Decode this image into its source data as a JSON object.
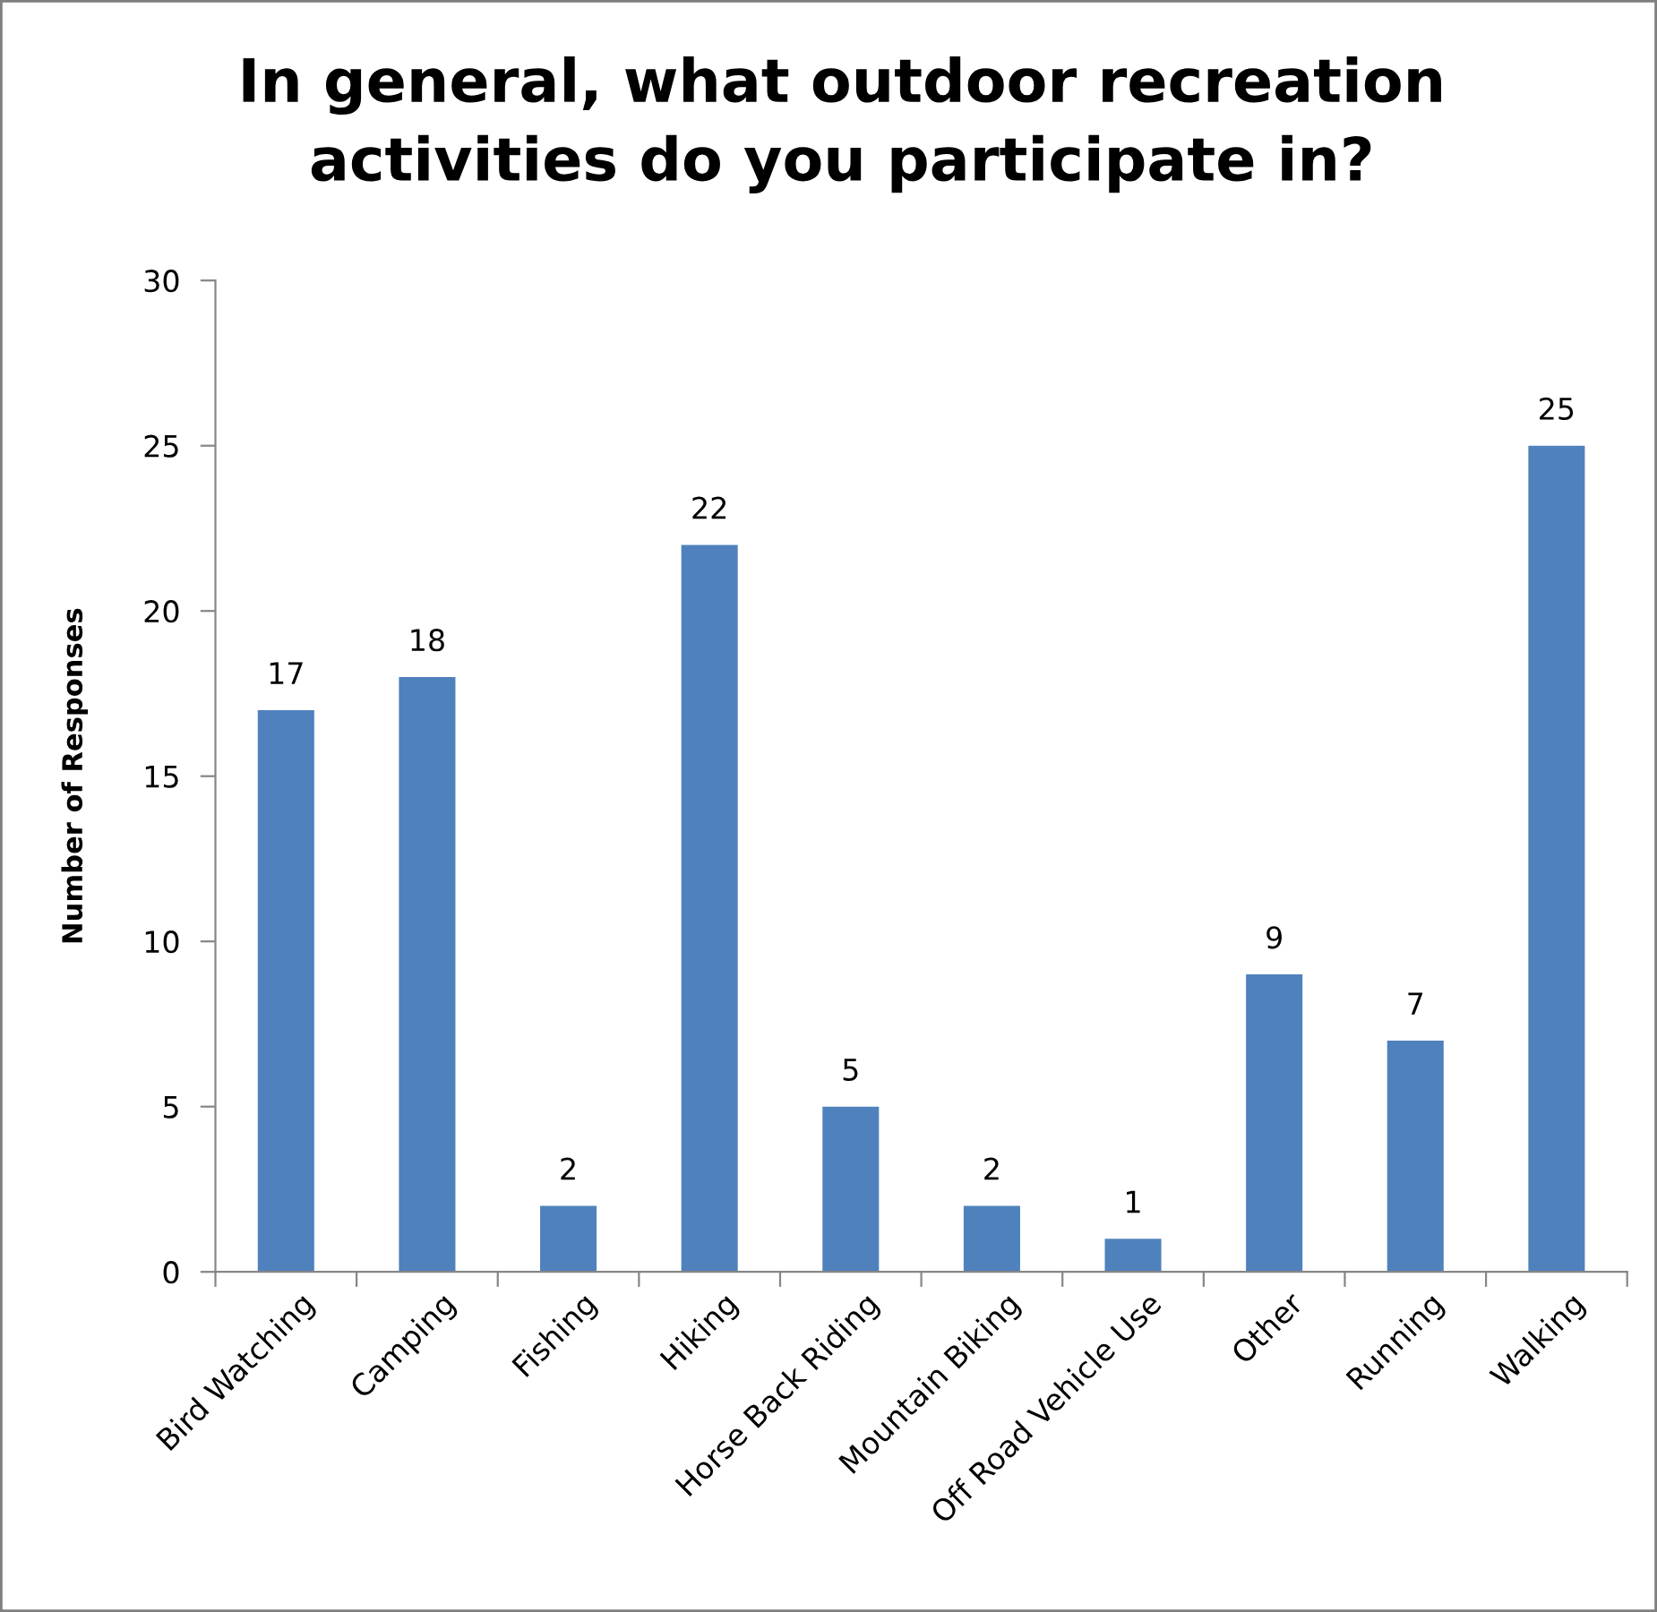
{
  "chart_data": {
    "type": "bar",
    "title": "In general, what outdoor recreation\nactivities do you participate in?",
    "ylabel": "Number of Responses",
    "categories": [
      "Bird Watching",
      "Camping",
      "Fishing",
      "Hiking",
      "Horse Back Riding",
      "Mountain Biking",
      "Off Road Vehicle Use",
      "Other",
      "Running",
      "Walking"
    ],
    "values": [
      17,
      18,
      2,
      22,
      5,
      2,
      1,
      9,
      7,
      25
    ],
    "color": "#4f81bd",
    "ylim": [
      0,
      30
    ],
    "yticks": [
      0,
      5,
      10,
      15,
      20,
      25,
      30
    ],
    "data_labels": true,
    "grid": false,
    "legend": false
  }
}
